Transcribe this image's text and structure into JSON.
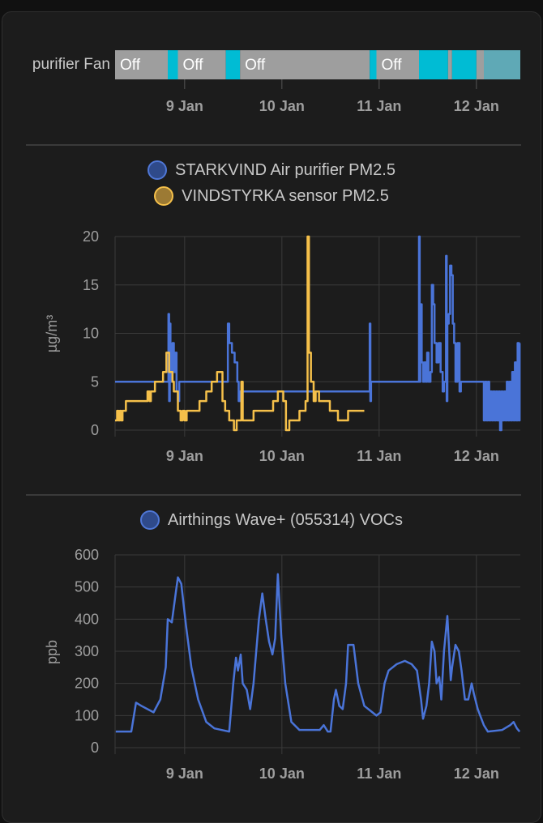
{
  "colors": {
    "background": "#1c1c1c",
    "grid": "#3a3a3a",
    "axis_text": "#9e9e9e",
    "off": "#9e9e9e",
    "on": "#00bcd4",
    "faded": "#5fa9b6",
    "pm_blue": "#4a74d8",
    "pm_yellow": "#f5c04a",
    "voc_blue": "#4a74d8"
  },
  "chart_data": [
    {
      "type": "timeline",
      "entity_label": "purifier Fan",
      "xlim": [
        "8 Jan 06:50",
        "12 Jan 10:50"
      ],
      "x_ticks": [
        "9 Jan",
        "10 Jan",
        "11 Jan",
        "12 Jan"
      ],
      "segments": [
        {
          "from": "8 Jan 06:50",
          "to": "8 Jan 19:50",
          "state": "Off",
          "color": "#9e9e9e"
        },
        {
          "from": "8 Jan 19:50",
          "to": "8 Jan 22:20",
          "state": "",
          "color": "#00bcd4"
        },
        {
          "from": "8 Jan 22:20",
          "to": "9 Jan 10:10",
          "state": "Off",
          "color": "#9e9e9e"
        },
        {
          "from": "9 Jan 10:10",
          "to": "9 Jan 13:40",
          "state": "",
          "color": "#00bcd4"
        },
        {
          "from": "9 Jan 13:40",
          "to": "10 Jan 21:40",
          "state": "Off",
          "color": "#9e9e9e"
        },
        {
          "from": "10 Jan 21:40",
          "to": "10 Jan 23:20",
          "state": "",
          "color": "#00bcd4"
        },
        {
          "from": "10 Jan 23:20",
          "to": "11 Jan 09:50",
          "state": "Off",
          "color": "#9e9e9e"
        },
        {
          "from": "11 Jan 09:50",
          "to": "11 Jan 17:00",
          "state": "",
          "color": "#00bcd4"
        },
        {
          "from": "11 Jan 17:00",
          "to": "11 Jan 18:00",
          "state": "",
          "color": "#9e9e9e"
        },
        {
          "from": "11 Jan 18:00",
          "to": "12 Jan 00:00",
          "state": "",
          "color": "#00bcd4"
        },
        {
          "from": "12 Jan 00:00",
          "to": "12 Jan 01:50",
          "state": "",
          "color": "#9e9e9e"
        },
        {
          "from": "12 Jan 01:50",
          "to": "12 Jan 10:50",
          "state": "",
          "color": "#5fa9b6"
        }
      ]
    },
    {
      "type": "line",
      "step": true,
      "ylabel": "µg/m³",
      "ylim": [
        0,
        20
      ],
      "y_ticks": [
        "0",
        "5",
        "10",
        "15",
        "20"
      ],
      "xlim": [
        "8 Jan 06:50",
        "12 Jan 10:50"
      ],
      "x_ticks": [
        "9 Jan",
        "10 Jan",
        "11 Jan",
        "12 Jan"
      ],
      "grid": true,
      "legend": "top-center",
      "series": [
        {
          "name": "STARKVIND Air purifier PM2.5",
          "color": "#4a74d8",
          "points": [
            [
              "8 Jan 06:50",
              5
            ],
            [
              "8 Jan 20:00",
              12
            ],
            [
              "8 Jan 20:10",
              3
            ],
            [
              "8 Jan 20:20",
              11
            ],
            [
              "8 Jan 20:30",
              5
            ],
            [
              "8 Jan 21:00",
              9
            ],
            [
              "8 Jan 21:20",
              6
            ],
            [
              "8 Jan 21:40",
              8
            ],
            [
              "8 Jan 22:00",
              4
            ],
            [
              "8 Jan 22:20",
              3
            ],
            [
              "8 Jan 22:40",
              5
            ],
            [
              "9 Jan 10:40",
              11
            ],
            [
              "9 Jan 11:00",
              9
            ],
            [
              "9 Jan 11:40",
              8
            ],
            [
              "9 Jan 12:20",
              7
            ],
            [
              "9 Jan 13:00",
              5
            ],
            [
              "9 Jan 13:20",
              3
            ],
            [
              "9 Jan 13:40",
              4
            ],
            [
              "10 Jan 21:40",
              11
            ],
            [
              "10 Jan 21:50",
              3
            ],
            [
              "10 Jan 22:00",
              5
            ],
            [
              "11 Jan 09:50",
              20
            ],
            [
              "11 Jan 10:00",
              5
            ],
            [
              "11 Jan 10:10",
              13
            ],
            [
              "11 Jan 10:30",
              7
            ],
            [
              "11 Jan 10:50",
              5
            ],
            [
              "11 Jan 11:10",
              7
            ],
            [
              "11 Jan 11:30",
              5
            ],
            [
              "11 Jan 11:50",
              8
            ],
            [
              "11 Jan 12:10",
              5
            ],
            [
              "11 Jan 12:40",
              6
            ],
            [
              "11 Jan 13:00",
              15
            ],
            [
              "11 Jan 13:20",
              13
            ],
            [
              "11 Jan 13:40",
              9
            ],
            [
              "11 Jan 14:10",
              7
            ],
            [
              "11 Jan 14:40",
              9
            ],
            [
              "11 Jan 15:10",
              6
            ],
            [
              "11 Jan 15:40",
              4
            ],
            [
              "11 Jan 16:00",
              5
            ],
            [
              "11 Jan 16:30",
              18
            ],
            [
              "11 Jan 16:40",
              3
            ],
            [
              "11 Jan 16:50",
              11
            ],
            [
              "11 Jan 17:10",
              12
            ],
            [
              "11 Jan 17:30",
              17
            ],
            [
              "11 Jan 17:50",
              16
            ],
            [
              "11 Jan 18:10",
              11
            ],
            [
              "11 Jan 18:30",
              9
            ],
            [
              "11 Jan 18:50",
              5
            ],
            [
              "11 Jan 19:20",
              9
            ],
            [
              "11 Jan 19:50",
              4
            ],
            [
              "11 Jan 20:10",
              5
            ],
            [
              "12 Jan 01:30",
              5
            ],
            [
              "12 Jan 01:50",
              1
            ],
            [
              "12 Jan 02:10",
              5
            ],
            [
              "12 Jan 02:30",
              1
            ],
            [
              "12 Jan 02:50",
              5
            ],
            [
              "12 Jan 03:10",
              1
            ],
            [
              "12 Jan 03:30",
              4
            ],
            [
              "12 Jan 03:50",
              1
            ],
            [
              "12 Jan 04:10",
              4
            ],
            [
              "12 Jan 04:30",
              1
            ],
            [
              "12 Jan 04:50",
              4
            ],
            [
              "12 Jan 05:10",
              1
            ],
            [
              "12 Jan 05:30",
              4
            ],
            [
              "12 Jan 05:50",
              0
            ],
            [
              "12 Jan 06:10",
              4
            ],
            [
              "12 Jan 06:30",
              1
            ],
            [
              "12 Jan 06:50",
              4
            ],
            [
              "12 Jan 07:10",
              1
            ],
            [
              "12 Jan 07:30",
              5
            ],
            [
              "12 Jan 07:50",
              1
            ],
            [
              "12 Jan 08:10",
              5
            ],
            [
              "12 Jan 08:30",
              1
            ],
            [
              "12 Jan 08:50",
              6
            ],
            [
              "12 Jan 09:10",
              1
            ],
            [
              "12 Jan 09:30",
              7
            ],
            [
              "12 Jan 09:50",
              1
            ],
            [
              "12 Jan 10:10",
              9
            ],
            [
              "12 Jan 10:30",
              1
            ],
            [
              "12 Jan 10:40",
              9
            ]
          ]
        },
        {
          "name": "VINDSTYRKA sensor PM2.5",
          "color": "#f5c04a",
          "points": [
            [
              "8 Jan 06:50",
              1
            ],
            [
              "8 Jan 07:20",
              2
            ],
            [
              "8 Jan 07:40",
              1
            ],
            [
              "8 Jan 08:00",
              2
            ],
            [
              "8 Jan 08:20",
              1
            ],
            [
              "8 Jan 08:40",
              2
            ],
            [
              "8 Jan 09:30",
              3
            ],
            [
              "8 Jan 14:50",
              4
            ],
            [
              "8 Jan 15:20",
              3
            ],
            [
              "8 Jan 15:40",
              4
            ],
            [
              "8 Jan 16:40",
              5
            ],
            [
              "8 Jan 18:40",
              6
            ],
            [
              "8 Jan 19:30",
              8
            ],
            [
              "8 Jan 20:10",
              6
            ],
            [
              "8 Jan 21:00",
              5
            ],
            [
              "8 Jan 21:20",
              4
            ],
            [
              "8 Jan 22:20",
              2
            ],
            [
              "8 Jan 23:00",
              1
            ],
            [
              "8 Jan 23:30",
              2
            ],
            [
              "9 Jan 00:00",
              1
            ],
            [
              "9 Jan 00:30",
              2
            ],
            [
              "9 Jan 03:40",
              3
            ],
            [
              "9 Jan 05:20",
              4
            ],
            [
              "9 Jan 06:40",
              5
            ],
            [
              "9 Jan 08:00",
              6
            ],
            [
              "9 Jan 09:20",
              3
            ],
            [
              "9 Jan 10:00",
              2
            ],
            [
              "9 Jan 11:00",
              1
            ],
            [
              "9 Jan 12:10",
              0
            ],
            [
              "9 Jan 12:50",
              1
            ],
            [
              "9 Jan 14:00",
              5
            ],
            [
              "9 Jan 14:20",
              1
            ],
            [
              "9 Jan 17:00",
              2
            ],
            [
              "9 Jan 21:50",
              3
            ],
            [
              "9 Jan 23:00",
              4
            ],
            [
              "10 Jan 00:20",
              3
            ],
            [
              "10 Jan 01:00",
              0
            ],
            [
              "10 Jan 01:50",
              1
            ],
            [
              "10 Jan 04:20",
              2
            ],
            [
              "10 Jan 05:50",
              3
            ],
            [
              "10 Jan 06:20",
              20
            ],
            [
              "10 Jan 06:40",
              8
            ],
            [
              "10 Jan 07:10",
              5
            ],
            [
              "10 Jan 07:50",
              3
            ],
            [
              "10 Jan 08:20",
              4
            ],
            [
              "10 Jan 09:10",
              3
            ],
            [
              "10 Jan 11:50",
              2
            ],
            [
              "10 Jan 13:50",
              1
            ],
            [
              "10 Jan 16:20",
              2
            ],
            [
              "10 Jan 20:20",
              2
            ]
          ]
        }
      ]
    },
    {
      "type": "line",
      "ylabel": "ppb",
      "ylim": [
        0,
        600
      ],
      "y_ticks": [
        "0",
        "100",
        "200",
        "300",
        "400",
        "500",
        "600"
      ],
      "xlim": [
        "8 Jan 06:50",
        "12 Jan 10:50"
      ],
      "x_ticks": [
        "9 Jan",
        "10 Jan",
        "11 Jan",
        "12 Jan"
      ],
      "grid": true,
      "legend": "top-center",
      "series": [
        {
          "name": "Airthings Wave+ (055314) VOCs",
          "color": "#4a74d8",
          "points": [
            [
              "8 Jan 07:00",
              50
            ],
            [
              "8 Jan 10:50",
              50
            ],
            [
              "8 Jan 12:00",
              140
            ],
            [
              "8 Jan 13:20",
              130
            ],
            [
              "8 Jan 16:20",
              110
            ],
            [
              "8 Jan 18:00",
              150
            ],
            [
              "8 Jan 19:20",
              250
            ],
            [
              "8 Jan 19:50",
              400
            ],
            [
              "8 Jan 20:50",
              390
            ],
            [
              "8 Jan 22:00",
              500
            ],
            [
              "8 Jan 22:20",
              530
            ],
            [
              "8 Jan 23:10",
              510
            ],
            [
              "9 Jan 00:20",
              380
            ],
            [
              "9 Jan 01:40",
              250
            ],
            [
              "9 Jan 03:20",
              150
            ],
            [
              "9 Jan 05:20",
              80
            ],
            [
              "9 Jan 07:20",
              60
            ],
            [
              "9 Jan 11:00",
              50
            ],
            [
              "9 Jan 12:00",
              200
            ],
            [
              "9 Jan 12:40",
              280
            ],
            [
              "9 Jan 13:10",
              240
            ],
            [
              "9 Jan 13:50",
              290
            ],
            [
              "9 Jan 14:20",
              200
            ],
            [
              "9 Jan 15:20",
              180
            ],
            [
              "9 Jan 16:10",
              120
            ],
            [
              "9 Jan 17:00",
              200
            ],
            [
              "9 Jan 18:20",
              400
            ],
            [
              "9 Jan 19:10",
              480
            ],
            [
              "9 Jan 20:00",
              400
            ],
            [
              "9 Jan 20:50",
              330
            ],
            [
              "9 Jan 21:40",
              290
            ],
            [
              "9 Jan 22:20",
              340
            ],
            [
              "9 Jan 23:00",
              540
            ],
            [
              "9 Jan 23:50",
              350
            ],
            [
              "10 Jan 00:50",
              200
            ],
            [
              "10 Jan 02:20",
              80
            ],
            [
              "10 Jan 04:20",
              55
            ],
            [
              "10 Jan 09:20",
              55
            ],
            [
              "10 Jan 10:20",
              70
            ],
            [
              "10 Jan 11:20",
              50
            ],
            [
              "10 Jan 12:00",
              50
            ],
            [
              "10 Jan 12:50",
              150
            ],
            [
              "10 Jan 13:20",
              180
            ],
            [
              "10 Jan 14:10",
              130
            ],
            [
              "10 Jan 15:00",
              120
            ],
            [
              "10 Jan 15:50",
              200
            ],
            [
              "10 Jan 16:20",
              320
            ],
            [
              "10 Jan 17:40",
              320
            ],
            [
              "10 Jan 18:50",
              200
            ],
            [
              "10 Jan 20:20",
              130
            ],
            [
              "10 Jan 22:20",
              110
            ],
            [
              "10 Jan 23:20",
              100
            ],
            [
              "11 Jan 00:20",
              110
            ],
            [
              "11 Jan 01:20",
              200
            ],
            [
              "11 Jan 02:20",
              240
            ],
            [
              "11 Jan 04:20",
              260
            ],
            [
              "11 Jan 06:20",
              270
            ],
            [
              "11 Jan 08:00",
              260
            ],
            [
              "11 Jan 09:20",
              240
            ],
            [
              "11 Jan 10:20",
              150
            ],
            [
              "11 Jan 10:50",
              90
            ],
            [
              "11 Jan 11:40",
              130
            ],
            [
              "11 Jan 12:20",
              200
            ],
            [
              "11 Jan 13:00",
              330
            ],
            [
              "11 Jan 13:40",
              300
            ],
            [
              "11 Jan 14:10",
              200
            ],
            [
              "11 Jan 14:50",
              220
            ],
            [
              "11 Jan 15:20",
              150
            ],
            [
              "11 Jan 16:00",
              300
            ],
            [
              "11 Jan 16:50",
              410
            ],
            [
              "11 Jan 17:40",
              210
            ],
            [
              "11 Jan 18:00",
              250
            ],
            [
              "11 Jan 18:50",
              320
            ],
            [
              "11 Jan 19:40",
              300
            ],
            [
              "11 Jan 20:20",
              240
            ],
            [
              "11 Jan 21:10",
              150
            ],
            [
              "11 Jan 22:00",
              150
            ],
            [
              "11 Jan 22:50",
              200
            ],
            [
              "11 Jan 23:20",
              170
            ],
            [
              "12 Jan 00:20",
              120
            ],
            [
              "12 Jan 01:50",
              70
            ],
            [
              "12 Jan 02:50",
              50
            ],
            [
              "12 Jan 06:20",
              55
            ],
            [
              "12 Jan 08:20",
              70
            ],
            [
              "12 Jan 09:10",
              80
            ],
            [
              "12 Jan 10:00",
              60
            ],
            [
              "12 Jan 10:40",
              50
            ]
          ]
        }
      ]
    }
  ]
}
